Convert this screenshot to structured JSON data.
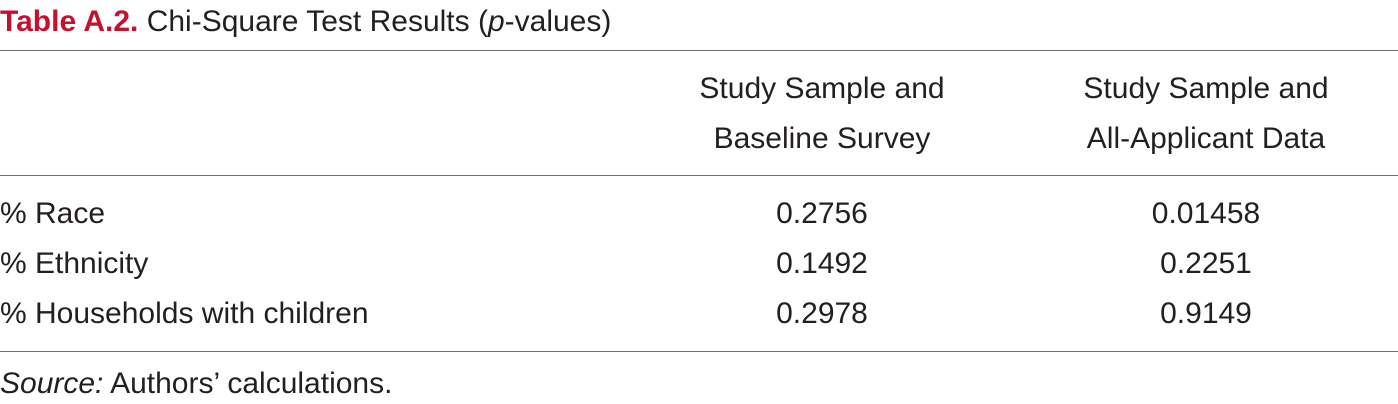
{
  "title": {
    "label": "Table A.2.",
    "text_before": " Chi-Square Test Results (",
    "italic_p": "p",
    "text_after": "-values)"
  },
  "table": {
    "columns": [
      {
        "line1": "Study Sample and",
        "line2": "Baseline Survey"
      },
      {
        "line1": "Study Sample and",
        "line2": "All-Applicant Data"
      }
    ],
    "rows": [
      {
        "label": "% Race",
        "values": [
          "0.2756",
          "0.01458"
        ]
      },
      {
        "label": "% Ethnicity",
        "values": [
          "0.1492",
          "0.2251"
        ]
      },
      {
        "label": "% Households with children",
        "values": [
          "0.2978",
          "0.9149"
        ]
      }
    ]
  },
  "source": {
    "label": "Source:",
    "text": " Authors’ calculations."
  },
  "colors": {
    "title_label": "#c8102e",
    "text": "#231f20",
    "rule": "#6d6e71"
  }
}
